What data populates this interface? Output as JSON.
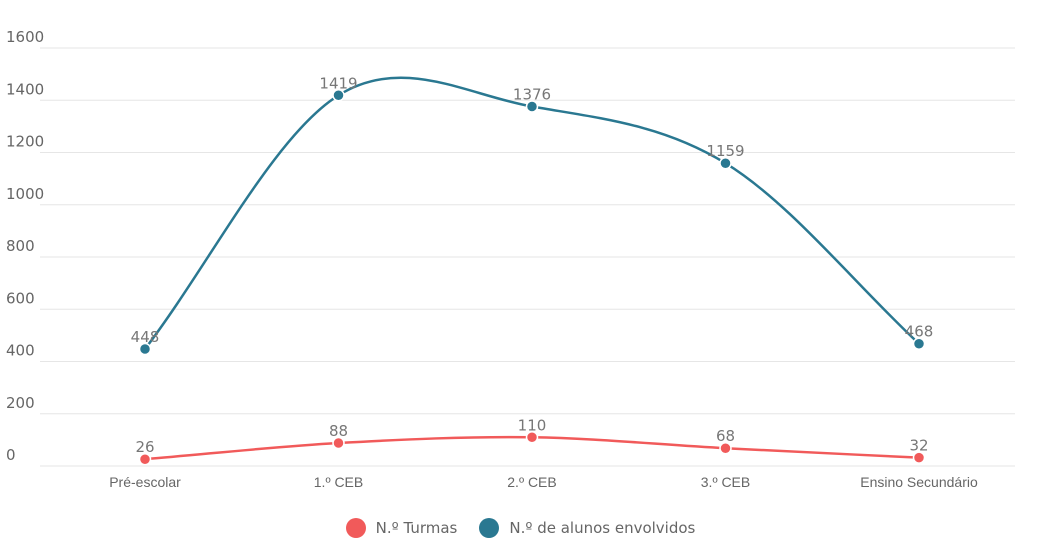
{
  "chart_data": {
    "type": "line",
    "categories": [
      "Pré-escolar",
      "1.º CEB",
      "2.º CEB",
      "3.º CEB",
      "Ensino Secundário"
    ],
    "y_ticks": [
      "0",
      "200",
      "400",
      "600",
      "800",
      "1000",
      "1200",
      "1400",
      "1600"
    ],
    "ylim": [
      0,
      1600
    ],
    "grid": true,
    "legend_position": "bottom",
    "series": [
      {
        "name": "N.º Turmas",
        "color": "#f15a5a",
        "values": [
          26,
          88,
          110,
          68,
          32
        ]
      },
      {
        "name": "N.º de alunos envolvidos",
        "color": "#2a7891",
        "values": [
          448,
          1419,
          1376,
          1159,
          468
        ]
      }
    ]
  }
}
